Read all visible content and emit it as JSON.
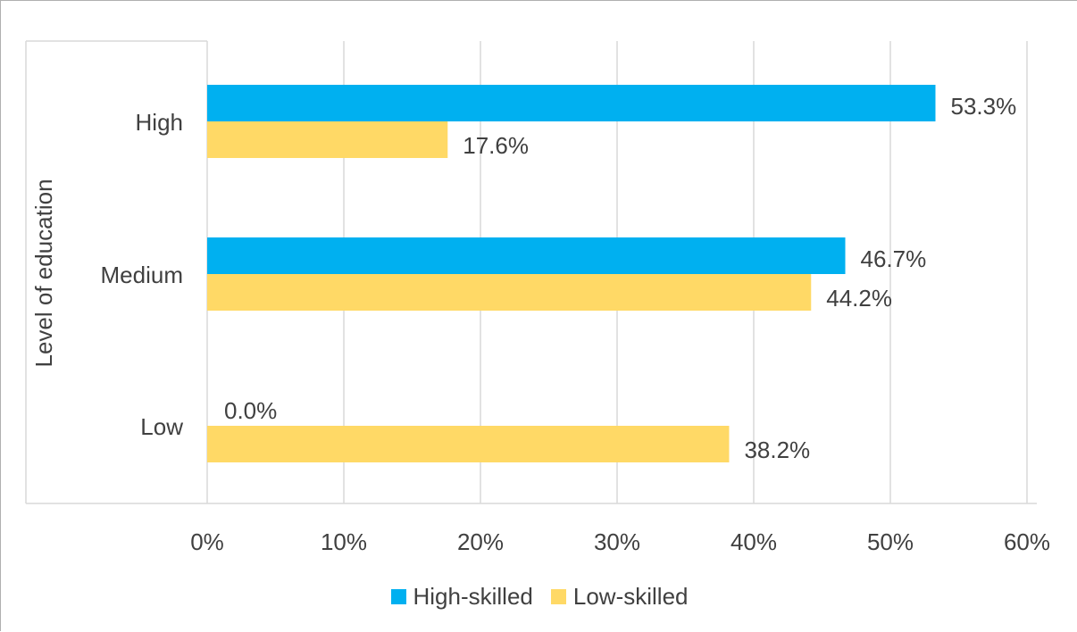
{
  "chart_data": {
    "type": "bar",
    "orientation": "horizontal",
    "ylabel": "Level of education",
    "xlabel": "",
    "categories": [
      "High",
      "Medium",
      "Low"
    ],
    "series": [
      {
        "name": "High-skilled",
        "color": "#00b0f0",
        "values": [
          53.3,
          46.7,
          0.0
        ],
        "labels": [
          "53.3%",
          "46.7%",
          "0.0%"
        ]
      },
      {
        "name": "Low-skilled",
        "color": "#ffd966",
        "values": [
          17.6,
          44.2,
          38.2
        ],
        "labels": [
          "17.6%",
          "44.2%",
          "38.2%"
        ]
      }
    ],
    "xlim": [
      0,
      60
    ],
    "xticks": [
      0,
      10,
      20,
      30,
      40,
      50,
      60
    ],
    "xtick_labels": [
      "0%",
      "10%",
      "20%",
      "30%",
      "40%",
      "50%",
      "60%"
    ],
    "grid": "vertical",
    "legend": "bottom"
  }
}
